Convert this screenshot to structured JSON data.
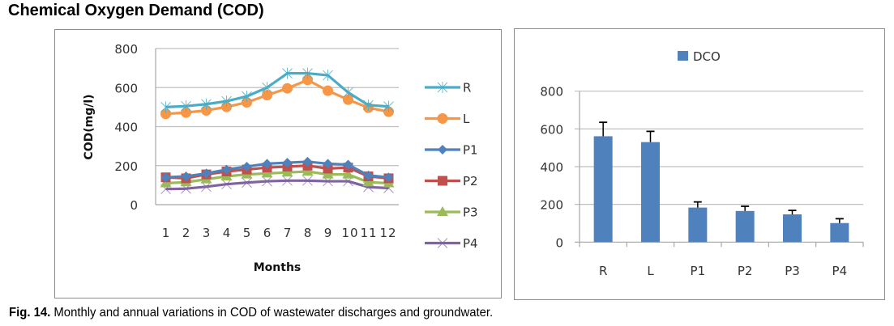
{
  "page": {
    "heading": "Chemical Oxygen Demand (COD)",
    "caption_label": "Fig. 14.",
    "caption_text": " Monthly and annual variations in COD of wastewater discharges and groundwater."
  },
  "chart_data": [
    {
      "type": "line",
      "title": "",
      "xlabel": "Months",
      "ylabel": "COD(mg/l)",
      "ylim": [
        0,
        800
      ],
      "yticks": [
        0,
        200,
        400,
        600,
        800
      ],
      "grid": true,
      "legend": "right",
      "categories": [
        "1",
        "2",
        "3",
        "4",
        "5",
        "6",
        "7",
        "8",
        "9",
        "10",
        "11",
        "12"
      ],
      "series": [
        {
          "name": "R",
          "color": "#4bacc6",
          "marker": "star",
          "values": [
            500,
            505,
            515,
            530,
            555,
            600,
            673,
            673,
            663,
            575,
            510,
            503
          ]
        },
        {
          "name": "L",
          "color": "#f79646",
          "marker": "circle",
          "values": [
            465,
            472,
            483,
            501,
            524,
            561,
            596,
            639,
            584,
            538,
            497,
            476
          ]
        },
        {
          "name": "P1",
          "color": "#4f81bd",
          "marker": "diamond",
          "values": [
            140,
            145,
            160,
            180,
            195,
            210,
            215,
            220,
            210,
            205,
            150,
            140
          ]
        },
        {
          "name": "P2",
          "color": "#c0504d",
          "marker": "square",
          "values": [
            140,
            135,
            155,
            170,
            180,
            190,
            195,
            200,
            185,
            190,
            145,
            135
          ]
        },
        {
          "name": "P3",
          "color": "#9bbb59",
          "marker": "triangle",
          "values": [
            110,
            115,
            130,
            145,
            155,
            160,
            165,
            170,
            155,
            155,
            115,
            110
          ]
        },
        {
          "name": "P4",
          "color": "#8064a2",
          "marker": "x",
          "values": [
            80,
            82,
            92,
            105,
            113,
            120,
            123,
            123,
            120,
            120,
            90,
            85
          ]
        }
      ]
    },
    {
      "type": "bar",
      "title": "",
      "xlabel": "",
      "ylabel": "",
      "ylim": [
        0,
        800
      ],
      "yticks": [
        0,
        200,
        400,
        600,
        800
      ],
      "grid": true,
      "legend": "top-center",
      "categories": [
        "R",
        "L",
        "P1",
        "P2",
        "P3",
        "P4"
      ],
      "series": [
        {
          "name": "DCO",
          "color": "#4f81bd",
          "values": [
            561,
            530,
            183,
            165,
            147,
            101
          ],
          "error_plus": [
            74,
            57,
            30,
            25,
            21,
            23
          ]
        }
      ]
    }
  ]
}
